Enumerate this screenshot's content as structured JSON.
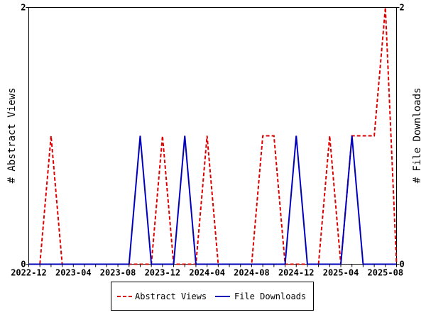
{
  "chart_data": {
    "type": "line",
    "title": "",
    "xlabel": "",
    "ylabel_left": "# Abstract Views",
    "ylabel_right": "# File Downloads",
    "x": [
      "2022-12",
      "2023-01",
      "2023-02",
      "2023-03",
      "2023-04",
      "2023-05",
      "2023-06",
      "2023-07",
      "2023-08",
      "2023-09",
      "2023-10",
      "2023-11",
      "2023-12",
      "2024-01",
      "2024-02",
      "2024-03",
      "2024-04",
      "2024-05",
      "2024-06",
      "2024-07",
      "2024-08",
      "2024-09",
      "2024-10",
      "2024-11",
      "2024-12",
      "2025-01",
      "2025-02",
      "2025-03",
      "2025-04",
      "2025-05",
      "2025-06",
      "2025-07",
      "2025-08",
      "2025-09"
    ],
    "x_tick_labels": [
      "2022-12",
      "2023-04",
      "2023-08",
      "2023-12",
      "2024-04",
      "2024-08",
      "2024-12",
      "2025-04",
      "2025-08"
    ],
    "ylim_left": [
      0,
      2
    ],
    "ylim_right": [
      0,
      2
    ],
    "y_tick_labels_left": [
      "0",
      "2"
    ],
    "y_tick_labels_right": [
      "0",
      "2"
    ],
    "series": [
      {
        "name": "Abstract Views",
        "axis": "left",
        "color": "#dd0000",
        "dash": true,
        "values": [
          0,
          0,
          1,
          0,
          0,
          0,
          0,
          0,
          0,
          0,
          0,
          0,
          1,
          0,
          0,
          0,
          1,
          0,
          0,
          0,
          0,
          1,
          1,
          0,
          0,
          0,
          0,
          1,
          0,
          1,
          1,
          1,
          2,
          0
        ]
      },
      {
        "name": "File Downloads",
        "axis": "right",
        "color": "#0000bb",
        "dash": false,
        "values": [
          0,
          0,
          0,
          0,
          0,
          0,
          0,
          0,
          0,
          0,
          1,
          0,
          0,
          0,
          1,
          0,
          0,
          0,
          0,
          0,
          0,
          0,
          0,
          0,
          1,
          0,
          0,
          0,
          0,
          1,
          0,
          0,
          0,
          0
        ]
      }
    ],
    "legend": {
      "placement": "bottom-center",
      "entries": [
        "Abstract Views",
        "File Downloads"
      ]
    },
    "grid": false
  }
}
